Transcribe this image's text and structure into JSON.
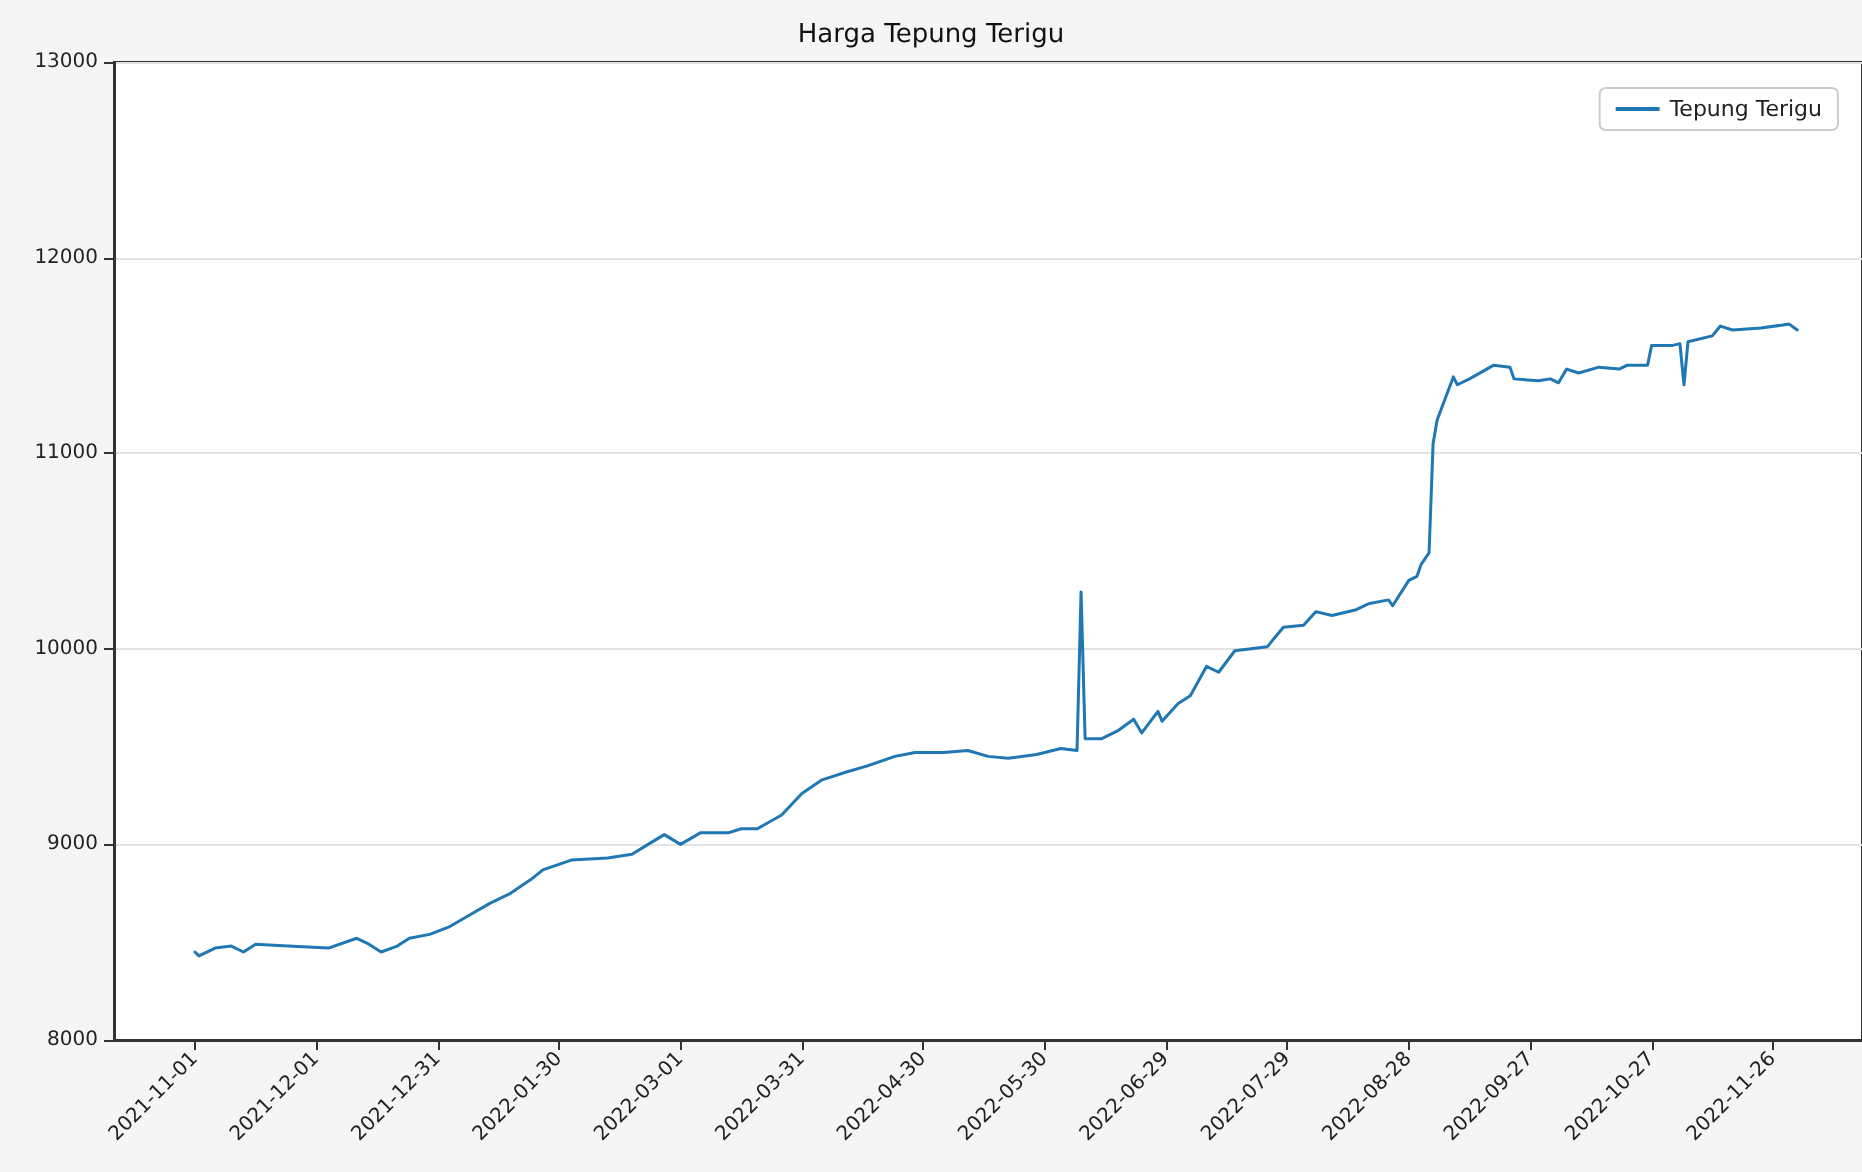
{
  "chart_data": {
    "type": "line",
    "title": "Harga Tepung Terigu",
    "x": [
      "2021-11-01",
      "2021-11-02",
      "2021-11-06",
      "2021-11-10",
      "2021-11-13",
      "2021-11-16",
      "2021-11-24",
      "2021-12-04",
      "2021-12-11",
      "2021-12-14",
      "2021-12-17",
      "2021-12-21",
      "2021-12-24",
      "2021-12-29",
      "2022-01-03",
      "2022-01-08",
      "2022-01-13",
      "2022-01-18",
      "2022-01-23",
      "2022-01-26",
      "2022-02-02",
      "2022-02-11",
      "2022-02-17",
      "2022-02-21",
      "2022-02-25",
      "2022-03-01",
      "2022-03-06",
      "2022-03-13",
      "2022-03-16",
      "2022-03-20",
      "2022-03-26",
      "2022-03-31",
      "2022-04-05",
      "2022-04-11",
      "2022-04-16",
      "2022-04-23",
      "2022-04-28",
      "2022-05-05",
      "2022-05-11",
      "2022-05-16",
      "2022-05-21",
      "2022-05-28",
      "2022-06-03",
      "2022-06-07",
      "2022-06-08",
      "2022-06-09",
      "2022-06-13",
      "2022-06-17",
      "2022-06-21",
      "2022-06-23",
      "2022-06-27",
      "2022-06-28",
      "2022-07-02",
      "2022-07-05",
      "2022-07-09",
      "2022-07-12",
      "2022-07-16",
      "2022-07-24",
      "2022-07-28",
      "2022-08-02",
      "2022-08-05",
      "2022-08-09",
      "2022-08-15",
      "2022-08-18",
      "2022-08-23",
      "2022-08-24",
      "2022-08-28",
      "2022-08-30",
      "2022-08-31",
      "2022-09-02",
      "2022-09-03",
      "2022-09-04",
      "2022-09-08",
      "2022-09-09",
      "2022-09-12",
      "2022-09-18",
      "2022-09-22",
      "2022-09-23",
      "2022-09-29",
      "2022-10-02",
      "2022-10-04",
      "2022-10-06",
      "2022-10-09",
      "2022-10-14",
      "2022-10-19",
      "2022-10-21",
      "2022-10-26",
      "2022-10-27",
      "2022-11-01",
      "2022-11-03",
      "2022-11-04",
      "2022-11-05",
      "2022-11-11",
      "2022-11-13",
      "2022-11-16",
      "2022-11-23",
      "2022-11-30",
      "2022-12-02"
    ],
    "series": [
      {
        "name": "Tepung Terigu",
        "color": "#1f77b4",
        "values": [
          8450,
          8430,
          8470,
          8480,
          8450,
          8490,
          8480,
          8470,
          8520,
          8490,
          8450,
          8480,
          8520,
          8540,
          8580,
          8640,
          8700,
          8750,
          8820,
          8870,
          8920,
          8930,
          8950,
          9000,
          9050,
          9000,
          9060,
          9060,
          9080,
          9080,
          9150,
          9260,
          9330,
          9370,
          9400,
          9450,
          9470,
          9470,
          9480,
          9450,
          9440,
          9460,
          9490,
          9480,
          10290,
          9540,
          9540,
          9580,
          9640,
          9570,
          9680,
          9630,
          9720,
          9760,
          9910,
          9880,
          9990,
          10010,
          10110,
          10120,
          10190,
          10170,
          10200,
          10230,
          10250,
          10220,
          10350,
          10370,
          10430,
          10490,
          11050,
          11170,
          11390,
          11350,
          11380,
          11450,
          11440,
          11380,
          11370,
          11380,
          11360,
          11430,
          11410,
          11440,
          11430,
          11450,
          11450,
          11550,
          11550,
          11560,
          11350,
          11570,
          11600,
          11650,
          11630,
          11640,
          11660,
          11630
        ]
      }
    ],
    "xlim": [
      "2021-10-12",
      "2022-12-18"
    ],
    "xticks": [
      "2021-11-01",
      "2021-12-01",
      "2021-12-31",
      "2022-01-30",
      "2022-03-01",
      "2022-03-31",
      "2022-04-30",
      "2022-05-30",
      "2022-06-29",
      "2022-07-29",
      "2022-08-28",
      "2022-09-27",
      "2022-10-27",
      "2022-11-26"
    ],
    "ylim": [
      8000,
      13000
    ],
    "yticks": [
      8000,
      9000,
      10000,
      11000,
      12000,
      13000
    ],
    "grid": "y",
    "legend": "top right",
    "marker": "none",
    "line_style": "solid"
  }
}
